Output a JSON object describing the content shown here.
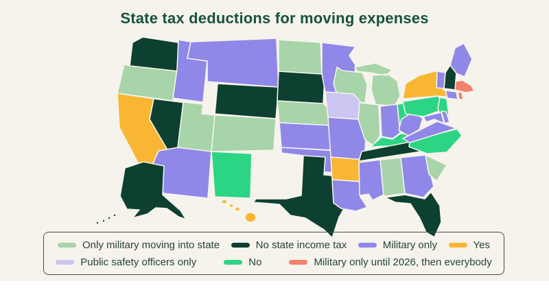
{
  "page": {
    "background_color": "#f5f3ec",
    "footer_strip_color": "#ffffff"
  },
  "title": "State tax deductions for moving expenses",
  "title_color": "#17523F",
  "legend": {
    "border_color": "#3E4D46",
    "text_color": "#27423A"
  },
  "chart_data": {
    "type": "choropleth-map",
    "region": "United States",
    "title": "State tax deductions for moving expenses",
    "categories": [
      {
        "id": "only_military_moving_into_state",
        "label": "Only military moving into state",
        "color": "#A7D4A8"
      },
      {
        "id": "no_state_income_tax",
        "label": "No state income tax",
        "color": "#0D4031"
      },
      {
        "id": "military_only",
        "label": "Military only",
        "color": "#8F88E8"
      },
      {
        "id": "yes",
        "label": "Yes",
        "color": "#F8B632"
      },
      {
        "id": "public_safety_officers_only",
        "label": "Public safety officers only",
        "color": "#CBC5F1"
      },
      {
        "id": "no",
        "label": "No",
        "color": "#2BD584"
      },
      {
        "id": "military_only_until_2026",
        "label": "Military only until 2026, then everybody",
        "color": "#F4816C"
      }
    ],
    "legend_rows": [
      [
        "only_military_moving_into_state",
        "no_state_income_tax",
        "military_only",
        "yes"
      ],
      [
        "public_safety_officers_only",
        "no",
        "military_only_until_2026"
      ]
    ],
    "state_categories": {
      "WA": "no_state_income_tax",
      "OR": "only_military_moving_into_state",
      "CA": "yes",
      "NV": "no_state_income_tax",
      "ID": "military_only",
      "MT": "military_only",
      "WY": "no_state_income_tax",
      "UT": "only_military_moving_into_state",
      "CO": "only_military_moving_into_state",
      "AZ": "military_only",
      "NM": "no",
      "ND": "only_military_moving_into_state",
      "SD": "no_state_income_tax",
      "NE": "only_military_moving_into_state",
      "KS": "military_only",
      "OK": "military_only",
      "TX": "no_state_income_tax",
      "MN": "military_only",
      "IA": "public_safety_officers_only",
      "MO": "military_only",
      "AR": "yes",
      "LA": "military_only",
      "WI": "only_military_moving_into_state",
      "IL": "only_military_moving_into_state",
      "MI": "only_military_moving_into_state",
      "IN": "military_only",
      "OH": "no",
      "KY": "no",
      "TN": "no_state_income_tax",
      "MS": "military_only",
      "AL": "only_military_moving_into_state",
      "GA": "military_only",
      "FL": "no_state_income_tax",
      "SC": "only_military_moving_into_state",
      "NC": "no",
      "VA": "military_only",
      "WV": "military_only",
      "MD": "military_only",
      "DE": "military_only",
      "PA": "no",
      "NJ": "no",
      "NY": "yes",
      "CT": "military_only",
      "RI": "military_only_until_2026",
      "MA": "military_only_until_2026",
      "VT": "military_only",
      "NH": "no_state_income_tax",
      "ME": "military_only",
      "AK": "no_state_income_tax",
      "HI": "yes"
    }
  }
}
